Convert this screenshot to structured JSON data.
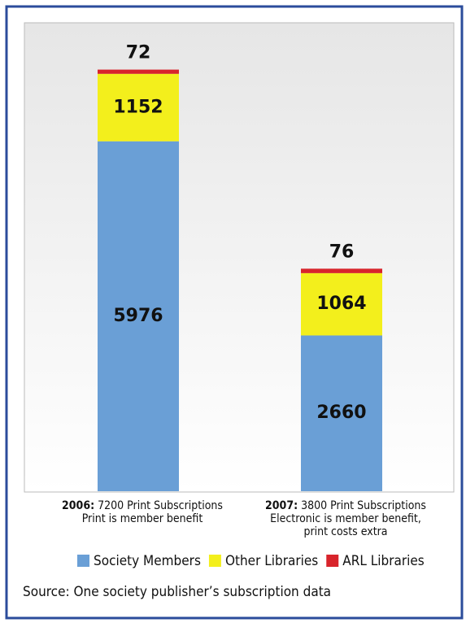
{
  "chart_data": {
    "type": "stacked_bar",
    "categories": [
      "2006:",
      "2007:"
    ],
    "category_notes": [
      [
        "7200 Print Subscriptions",
        "Print is member benefit"
      ],
      [
        "3800 Print Subscriptions",
        "Electronic is member benefit,",
        "print costs extra"
      ]
    ],
    "series": [
      {
        "name": "Society Members",
        "color": "#6a9fd6",
        "values": [
          5976,
          2660
        ]
      },
      {
        "name": "Other Libraries",
        "color": "#f3ef1c",
        "values": [
          1152,
          1064
        ]
      },
      {
        "name": "ARL Libraries",
        "color": "#d8242b",
        "values": [
          72,
          76
        ]
      }
    ],
    "ylim": [
      0,
      8000
    ],
    "source": "Source: One society publisher’s subscription data"
  }
}
